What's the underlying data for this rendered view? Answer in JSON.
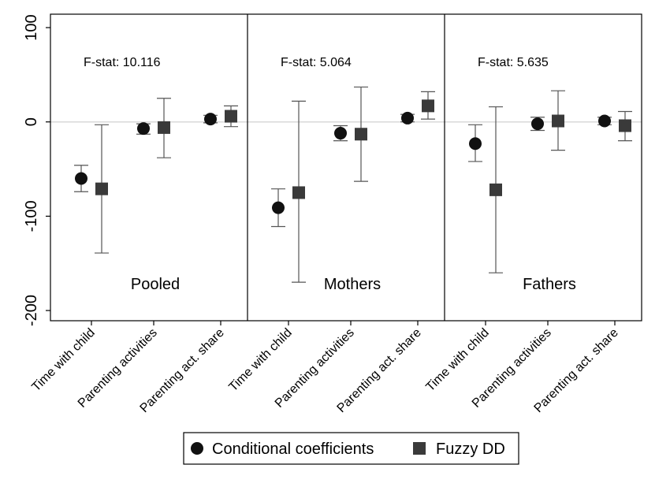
{
  "chart_data": {
    "type": "scatter",
    "subtype": "coefficient plot with confidence intervals, three panels",
    "y_axis": {
      "ticks": [
        100,
        0,
        -100,
        -200
      ],
      "tick_labels": [
        "100",
        "0",
        "-100",
        "-200"
      ],
      "ylim": [
        -210,
        105
      ],
      "reference_line": 0
    },
    "categories": [
      "Time with child",
      "Parenting activities",
      "Parenting act. share"
    ],
    "panels": [
      {
        "label": "Pooled",
        "fstat": "F-stat: 10.116",
        "series": [
          {
            "name": "Conditional coefficients",
            "points": [
              {
                "value": -60,
                "ci": [
                  -74,
                  -46
                ]
              },
              {
                "value": -7,
                "ci": [
                  -13,
                  -2
                ]
              },
              {
                "value": 3,
                "ci": [
                  -1,
                  7
                ]
              }
            ]
          },
          {
            "name": "Fuzzy DD",
            "points": [
              {
                "value": -71,
                "ci": [
                  -139,
                  -3
                ]
              },
              {
                "value": -6,
                "ci": [
                  -38,
                  25
                ]
              },
              {
                "value": 6,
                "ci": [
                  -5,
                  17
                ]
              }
            ]
          }
        ]
      },
      {
        "label": "Mothers",
        "fstat": "F-stat: 5.064",
        "series": [
          {
            "name": "Conditional coefficients",
            "points": [
              {
                "value": -91,
                "ci": [
                  -111,
                  -71
                ]
              },
              {
                "value": -12,
                "ci": [
                  -20,
                  -4
                ]
              },
              {
                "value": 4,
                "ci": [
                  0,
                  8
                ]
              }
            ]
          },
          {
            "name": "Fuzzy DD",
            "points": [
              {
                "value": -75,
                "ci": [
                  -170,
                  22
                ]
              },
              {
                "value": -13,
                "ci": [
                  -63,
                  37
                ]
              },
              {
                "value": 17,
                "ci": [
                  3,
                  32
                ]
              }
            ]
          }
        ]
      },
      {
        "label": "Fathers",
        "fstat": "F-stat: 5.635",
        "series": [
          {
            "name": "Conditional coefficients",
            "points": [
              {
                "value": -23,
                "ci": [
                  -42,
                  -3
                ]
              },
              {
                "value": -2,
                "ci": [
                  -9,
                  5
                ]
              },
              {
                "value": 1,
                "ci": [
                  -3,
                  5
                ]
              }
            ]
          },
          {
            "name": "Fuzzy DD",
            "points": [
              {
                "value": -72,
                "ci": [
                  -160,
                  16
                ]
              },
              {
                "value": 1,
                "ci": [
                  -30,
                  33
                ]
              },
              {
                "value": -4,
                "ci": [
                  -20,
                  11
                ]
              }
            ]
          }
        ]
      }
    ],
    "legend": {
      "placement": "bottom",
      "entries": [
        {
          "name": "Conditional coefficients",
          "marker": "circle"
        },
        {
          "name": "Fuzzy DD",
          "marker": "square"
        }
      ]
    },
    "colors": {
      "conditional": "#111111",
      "fuzzy": "#3a3a3a",
      "ci_whisker": "#555555",
      "zero_line": "#d9d9d9",
      "frame": "#000000"
    }
  }
}
